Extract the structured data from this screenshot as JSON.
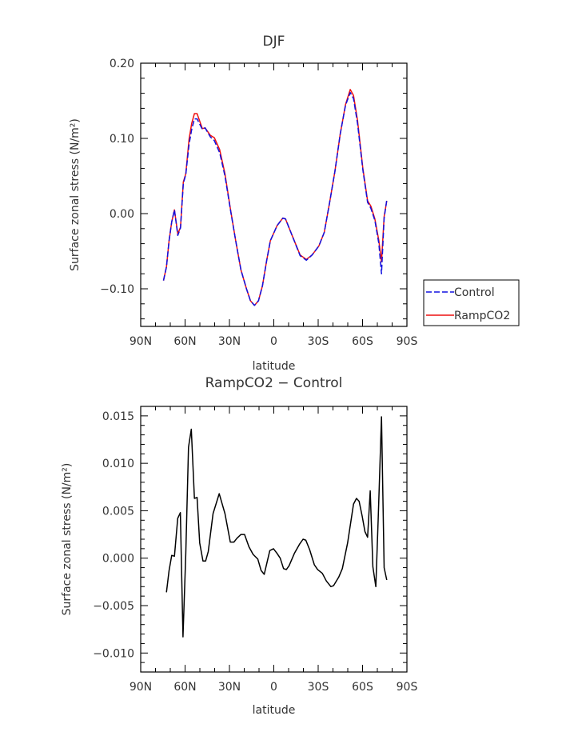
{
  "chart_data": [
    {
      "type": "line",
      "title": "DJF",
      "xlabel": "latitude",
      "ylabel": "Surface zonal stress (N/m²)",
      "xlim": [
        90,
        -90
      ],
      "ylim": [
        -0.15,
        0.2
      ],
      "xticks": [
        90,
        60,
        30,
        0,
        -30,
        -60,
        -90
      ],
      "xtick_labels": [
        "90N",
        "60N",
        "30N",
        "0",
        "30S",
        "60S",
        "90S"
      ],
      "yticks": [
        -0.1,
        0.0,
        0.1,
        0.2
      ],
      "ytick_labels": [
        "−0.10",
        "0.00",
        "0.10",
        "0.20"
      ],
      "grid": false,
      "legend": {
        "placement": "right",
        "entries": [
          "Control",
          "RampCO2"
        ]
      },
      "x": [
        74.6,
        72.6,
        70.8,
        69,
        67.2,
        64.9,
        63.1,
        61.2,
        59.5,
        57.3,
        55.5,
        53.7,
        51.9,
        48.3,
        46.5,
        42.9,
        40.2,
        36.6,
        33,
        29.4,
        25.8,
        22.2,
        18.5,
        15.8,
        13.1,
        10.4,
        7.7,
        5,
        2.3,
        -2.2,
        -6.1,
        -7.9,
        -12.4,
        -17.8,
        -22,
        -25.9,
        -30.5,
        -34.1,
        -37.7,
        -41.3,
        -44.9,
        -48.5,
        -51.7,
        -53.9,
        -56.6,
        -60.2,
        -63.4,
        -65.6,
        -68.3,
        -71,
        -72.8,
        -74.6,
        -76.4
      ],
      "series": [
        {
          "name": "Control",
          "color": "#1010e0",
          "dash": true,
          "values": [
            -0.089,
            -0.071,
            -0.036,
            -0.011,
            0.005,
            -0.029,
            -0.019,
            0.04,
            0.052,
            0.092,
            0.112,
            0.126,
            0.126,
            0.112,
            0.114,
            0.102,
            0.097,
            0.081,
            0.05,
            0.006,
            -0.036,
            -0.075,
            -0.1,
            -0.116,
            -0.122,
            -0.116,
            -0.096,
            -0.064,
            -0.036,
            -0.016,
            -0.006,
            -0.007,
            -0.029,
            -0.056,
            -0.062,
            -0.055,
            -0.043,
            -0.025,
            0.014,
            0.056,
            0.106,
            0.144,
            0.161,
            0.153,
            0.12,
            0.058,
            0.015,
            0.007,
            -0.009,
            -0.04,
            -0.08,
            -0.006,
            0.018
          ]
        },
        {
          "name": "RampCO2",
          "color": "#ee1111",
          "dash": false,
          "values": [
            -0.089,
            -0.071,
            -0.036,
            -0.011,
            0.005,
            -0.027,
            -0.018,
            0.042,
            0.053,
            0.099,
            0.12,
            0.133,
            0.133,
            0.113,
            0.114,
            0.104,
            0.101,
            0.085,
            0.053,
            0.007,
            -0.036,
            -0.075,
            -0.1,
            -0.116,
            -0.122,
            -0.116,
            -0.096,
            -0.064,
            -0.036,
            -0.016,
            -0.006,
            -0.007,
            -0.029,
            -0.055,
            -0.061,
            -0.055,
            -0.043,
            -0.025,
            0.014,
            0.056,
            0.106,
            0.145,
            0.165,
            0.157,
            0.124,
            0.06,
            0.017,
            0.01,
            -0.007,
            -0.036,
            -0.064,
            -0.004,
            0.017
          ]
        }
      ]
    },
    {
      "type": "line",
      "title": "RampCO2 − Control",
      "xlabel": "latitude",
      "ylabel": "Surface zonal stress (N/m²)",
      "xlim": [
        90,
        -90
      ],
      "ylim": [
        -0.012,
        0.016
      ],
      "xticks": [
        90,
        60,
        30,
        0,
        -30,
        -60,
        -90
      ],
      "xtick_labels": [
        "90N",
        "60N",
        "30N",
        "0",
        "30S",
        "60S",
        "90S"
      ],
      "yticks": [
        -0.01,
        -0.005,
        0.0,
        0.005,
        0.01,
        0.015
      ],
      "ytick_labels": [
        "−0.010",
        "−0.005",
        "0.000",
        "0.005",
        "0.010",
        "0.015"
      ],
      "grid": false,
      "series": [
        {
          "name": "RampCO2 - Control",
          "color": "#000000",
          "x": [
            72.6,
            70.8,
            69,
            67.2,
            65,
            63.2,
            61.4,
            59.5,
            57.7,
            55.8,
            53.7,
            51.9,
            50.1,
            47.9,
            46.1,
            44.3,
            41.1,
            36.9,
            33,
            29.4,
            27,
            24.9,
            22.2,
            19.8,
            16.8,
            14,
            10.8,
            8.6,
            6.5,
            2.7,
            0.2,
            -2.2,
            -4.3,
            -6.6,
            -8.5,
            -10.3,
            -13.9,
            -17.5,
            -19.8,
            -21.6,
            -24.2,
            -27.4,
            -29.6,
            -32.8,
            -35.5,
            -38.6,
            -40.4,
            -43.9,
            -46.3,
            -49.9,
            -53.9,
            -55.9,
            -57.7,
            -59.8,
            -61.6,
            -63.4,
            -65.2,
            -67,
            -69,
            -70.6,
            -72.8,
            -74.6,
            -76.4
          ],
          "values": [
            -0.0036,
            -0.0013,
            0.0003,
            0.0002,
            0.0042,
            0.0048,
            -0.0083,
            0.0005,
            0.0117,
            0.0136,
            0.0063,
            0.0064,
            0.0016,
            -0.0003,
            -0.0003,
            0.0007,
            0.0047,
            0.0068,
            0.0047,
            0.0017,
            0.0017,
            0.0021,
            0.0025,
            0.0025,
            0.0012,
            0.0004,
            -0.0001,
            -0.0013,
            -0.0017,
            0.0008,
            0.001,
            0.0005,
            0.0,
            -0.0011,
            -0.0012,
            -0.0008,
            0.0005,
            0.0015,
            0.002,
            0.0019,
            0.0009,
            -0.0007,
            -0.0012,
            -0.0016,
            -0.0024,
            -0.003,
            -0.0029,
            -0.002,
            -0.0011,
            0.0016,
            0.0057,
            0.0063,
            0.006,
            0.0044,
            0.0028,
            0.0022,
            0.0071,
            -0.0009,
            -0.003,
            0.0042,
            0.0149,
            -0.001,
            -0.0023
          ]
        }
      ]
    }
  ]
}
